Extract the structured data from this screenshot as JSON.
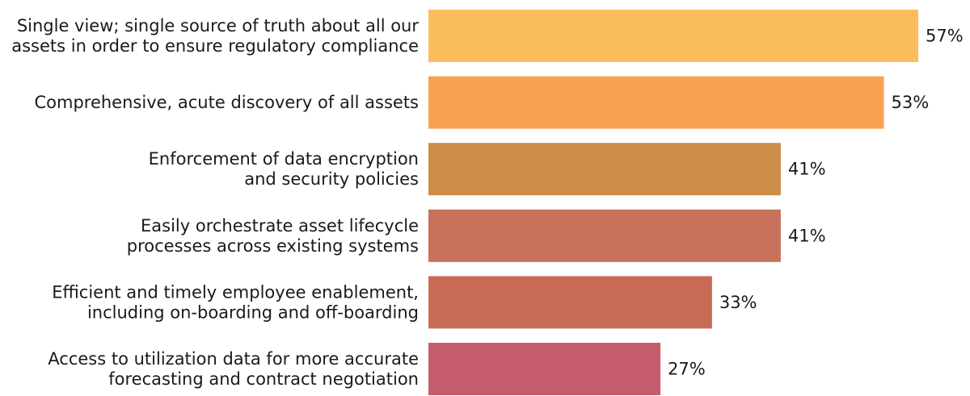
{
  "chart_data": {
    "type": "bar",
    "orientation": "horizontal",
    "categories": [
      [
        "Single view; single source of truth about all our",
        "assets in order to ensure regulatory compliance"
      ],
      [
        "Comprehensive, acute discovery of all assets"
      ],
      [
        "Enforcement of data encryption",
        "and security policies"
      ],
      [
        "Easily orchestrate asset lifecycle",
        "processes across existing systems"
      ],
      [
        "Efficient and timely employee enablement,",
        "including on-boarding and off-boarding"
      ],
      [
        "Access to utilization data for more accurate",
        "forecasting and contract negotiation"
      ]
    ],
    "values": [
      57,
      53,
      41,
      41,
      33,
      27
    ],
    "value_labels": [
      "57%",
      "53%",
      "41%",
      "41%",
      "33%",
      "27%"
    ],
    "colors": [
      "#fbbd5c",
      "#f6a252",
      "#cc8c4a",
      "#c9705a",
      "#c86b56",
      "#c55c6b"
    ],
    "xlim": [
      0,
      57
    ],
    "title": "",
    "xlabel": "",
    "ylabel": "",
    "grid": false,
    "legend": "none"
  }
}
